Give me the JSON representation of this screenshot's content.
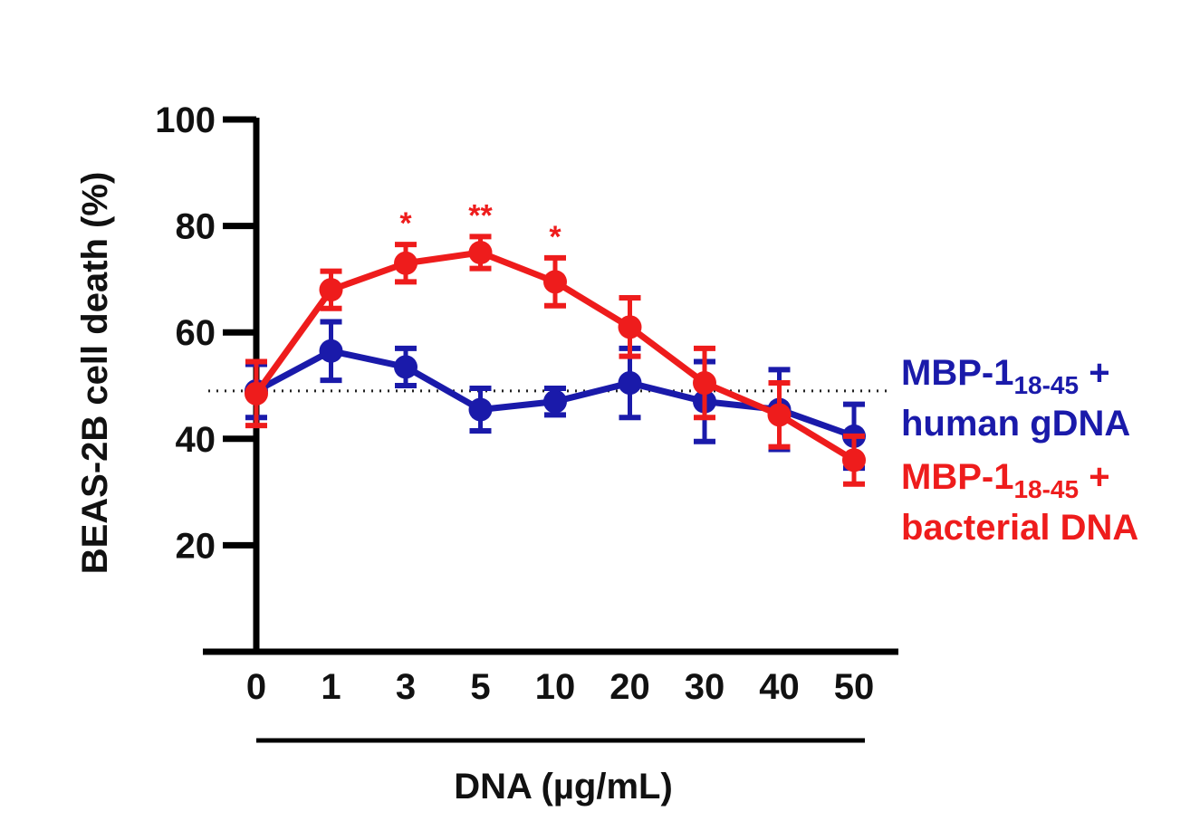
{
  "chart_data": {
    "type": "line",
    "ylabel": "BEAS-2B cell death (%)",
    "xlabel": "DNA (µg/mL)",
    "ylim": [
      0,
      100
    ],
    "yticks": [
      20,
      40,
      60,
      80,
      100
    ],
    "categories": [
      "0",
      "1",
      "3",
      "5",
      "10",
      "20",
      "30",
      "40",
      "50"
    ],
    "reference_line": {
      "y": 49,
      "style": "dotted"
    },
    "legend_placement": "right",
    "series": [
      {
        "name_parts": {
          "main": "MBP-1",
          "sub": "18-45",
          "tail": " +",
          "line2": "human gDNA"
        },
        "color": "#1a1aaa",
        "values": [
          49,
          56.5,
          53.5,
          45.5,
          47,
          50.5,
          47,
          45.5,
          40.5
        ],
        "errors": [
          5,
          5.5,
          3.5,
          4,
          2.5,
          6.5,
          7.5,
          7.5,
          6
        ]
      },
      {
        "name_parts": {
          "main": "MBP-1",
          "sub": "18-45",
          "tail": " +",
          "line2": "bacterial DNA"
        },
        "color": "#ee1c1c",
        "values": [
          48.5,
          68,
          73,
          75,
          69.5,
          61,
          50.5,
          44.5,
          36
        ],
        "errors": [
          6,
          3.5,
          3.5,
          3,
          4.5,
          5.5,
          6.5,
          6,
          4.5
        ]
      }
    ],
    "annotations": [
      {
        "category": "3",
        "text": "*",
        "color": "#ee1c1c"
      },
      {
        "category": "5",
        "text": "**",
        "color": "#ee1c1c"
      },
      {
        "category": "10",
        "text": "*",
        "color": "#ee1c1c"
      }
    ]
  }
}
